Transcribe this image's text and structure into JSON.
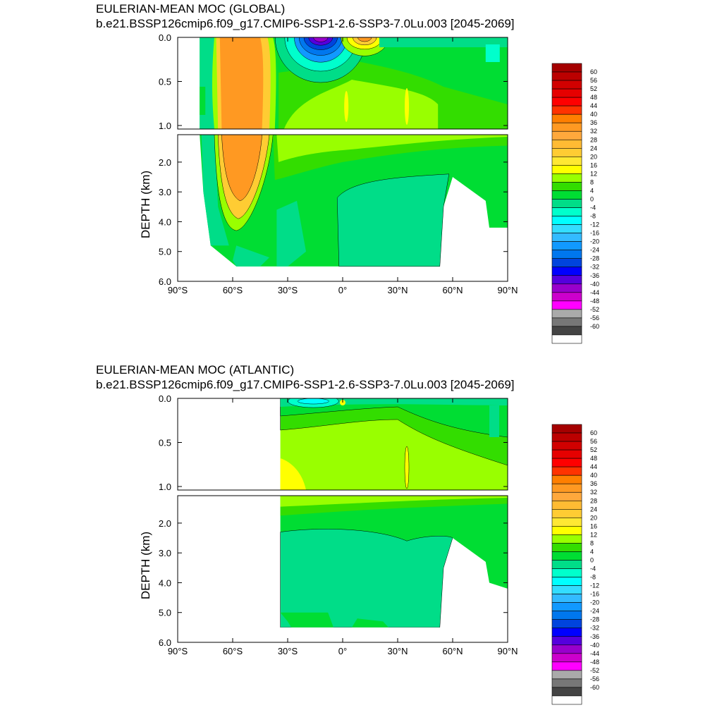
{
  "panels": [
    {
      "title": "EULERIAN-MEAN MOC (GLOBAL)",
      "subtitle": "b.e21.BSSP126cmip6.f09_g17.CMIP6-SSP1-2.6-SSP3-7.0Lu.003 [2045-2069]"
    },
    {
      "title": "EULERIAN-MEAN MOC (ATLANTIC)",
      "subtitle": "b.e21.BSSP126cmip6.f09_g17.CMIP6-SSP1-2.6-SSP3-7.0Lu.003 [2045-2069]"
    }
  ],
  "chart_data": [
    {
      "type": "heatmap",
      "title": "EULERIAN-MEAN MOC (GLOBAL)",
      "subtitle": "b.e21.BSSP126cmip6.f09_g17.CMIP6-SSP1-2.6-SSP3-7.0Lu.003 [2045-2069]",
      "ylabel": "DEPTH (km)",
      "x_ticks": [
        "90°S",
        "60°S",
        "30°S",
        "0°",
        "30°N",
        "60°N",
        "90°N"
      ],
      "x_range": [
        -90,
        90
      ],
      "y_upper_ticks": [
        "0.0",
        "0.5",
        "1.0"
      ],
      "y_lower_ticks": [
        "2.0",
        "3.0",
        "4.0",
        "5.0",
        "6.0"
      ],
      "y_upper_range": [
        0,
        1.0
      ],
      "y_lower_range": [
        1.0,
        6.0
      ],
      "features": [
        {
          "name": "southern ocean cell",
          "lat_range": [
            -70,
            -40
          ],
          "max_value": 40
        },
        {
          "name": "tropical negative cell",
          "lat": -12,
          "min_value": -44
        },
        {
          "name": "tropical positive cell",
          "lat": 10,
          "max_value": 20
        },
        {
          "name": "deep abyssal cell",
          "lat_range": [
            0,
            55
          ],
          "depth_range_km": [
            2.5,
            5.5
          ],
          "value": -4
        }
      ]
    },
    {
      "type": "heatmap",
      "title": "EULERIAN-MEAN MOC (ATLANTIC)",
      "subtitle": "b.e21.BSSP126cmip6.f09_g17.CMIP6-SSP1-2.6-SSP3-7.0Lu.003 [2045-2069]",
      "ylabel": "DEPTH (km)",
      "x_ticks": [
        "90°S",
        "60°S",
        "30°S",
        "0°",
        "30°N",
        "60°N",
        "90°N"
      ],
      "x_range": [
        -90,
        90
      ],
      "y_upper_ticks": [
        "0.0",
        "0.5",
        "1.0"
      ],
      "y_lower_ticks": [
        "2.0",
        "3.0",
        "4.0",
        "5.0",
        "6.0"
      ],
      "y_upper_range": [
        0,
        1.0
      ],
      "y_lower_range": [
        1.0,
        6.0
      ],
      "features": [
        {
          "name": "upper overturning cell",
          "lat_range": [
            -34,
            60
          ],
          "max_value": 16
        },
        {
          "name": "deep return cell",
          "lat_range": [
            -34,
            55
          ],
          "depth_range_km": [
            2.0,
            5.5
          ],
          "value": -4
        }
      ]
    }
  ],
  "colorbar": {
    "labels": [
      "60",
      "56",
      "52",
      "48",
      "44",
      "40",
      "36",
      "32",
      "28",
      "24",
      "20",
      "16",
      "12",
      "8",
      "4",
      "0",
      "-4",
      "-8",
      "-12",
      "-16",
      "-20",
      "-24",
      "-28",
      "-32",
      "-36",
      "-40",
      "-44",
      "-48",
      "-52",
      "-56",
      "-60"
    ],
    "colors": [
      "#a50000",
      "#bb0000",
      "#d10000",
      "#e60000",
      "#ff0000",
      "#ff3300",
      "#ff7f00",
      "#ff9922",
      "#ffa83c",
      "#ffbb33",
      "#ffcc33",
      "#ffe833",
      "#ffff00",
      "#99ff00",
      "#33dd00",
      "#00dd33",
      "#00dd88",
      "#00ffcc",
      "#00ffff",
      "#33ddff",
      "#33bbff",
      "#1199ff",
      "#0077ee",
      "#0044dd",
      "#0000ff",
      "#5500dd",
      "#9900cc",
      "#cc00cc",
      "#ff00ff",
      "#aaaaaa",
      "#777777",
      "#444444",
      "#ffffff"
    ]
  }
}
